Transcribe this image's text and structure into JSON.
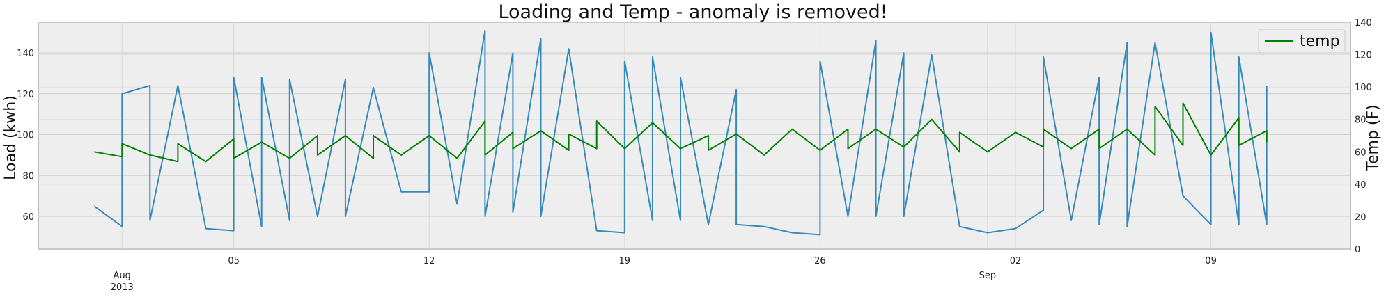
{
  "chart_data": {
    "type": "line",
    "title": "Loading and Temp - anomaly is removed!",
    "ylabel": "Load (kwh)",
    "y2label": "Temp (F)",
    "xlim": [
      "2013-07-29",
      "2013-09-14"
    ],
    "ylim": [
      44,
      155
    ],
    "y2lim": [
      0,
      140
    ],
    "yticks": [
      60,
      80,
      100,
      120,
      140
    ],
    "y2ticks": [
      0,
      20,
      40,
      60,
      80,
      100,
      120,
      140
    ],
    "xticks": [
      {
        "date": "2013-08-01",
        "label": "Aug",
        "sublabel": "2013"
      },
      {
        "date": "2013-08-05",
        "label": "05",
        "sublabel": ""
      },
      {
        "date": "2013-08-12",
        "label": "12",
        "sublabel": ""
      },
      {
        "date": "2013-08-19",
        "label": "19",
        "sublabel": ""
      },
      {
        "date": "2013-08-26",
        "label": "26",
        "sublabel": ""
      },
      {
        "date": "2013-09-01",
        "label": "Sep",
        "sublabel": ""
      },
      {
        "date": "2013-09-02",
        "label": "02",
        "sublabel": ""
      },
      {
        "date": "2013-09-09",
        "label": "09",
        "sublabel": ""
      }
    ],
    "grid": true,
    "legend": {
      "position": "top-right",
      "entries": [
        "temp"
      ]
    },
    "series": [
      {
        "axis": "left",
        "color": "#348abd",
        "points": [
          [
            "2013-07-31",
            65
          ],
          [
            "2013-08-01",
            55
          ],
          [
            "2013-08-01",
            120
          ],
          [
            "2013-08-02",
            124
          ],
          [
            "2013-08-02",
            58
          ],
          [
            "2013-08-03",
            124
          ],
          [
            "2013-08-04",
            54
          ],
          [
            "2013-08-05",
            53
          ],
          [
            "2013-08-05",
            128
          ],
          [
            "2013-08-06",
            55
          ],
          [
            "2013-08-06",
            128
          ],
          [
            "2013-08-07",
            58
          ],
          [
            "2013-08-07",
            127
          ],
          [
            "2013-08-08",
            60
          ],
          [
            "2013-08-09",
            127
          ],
          [
            "2013-08-09",
            60
          ],
          [
            "2013-08-10",
            123
          ],
          [
            "2013-08-11",
            72
          ],
          [
            "2013-08-12",
            72
          ],
          [
            "2013-08-12",
            140
          ],
          [
            "2013-08-13",
            66
          ],
          [
            "2013-08-14",
            151
          ],
          [
            "2013-08-14",
            60
          ],
          [
            "2013-08-15",
            140
          ],
          [
            "2013-08-15",
            62
          ],
          [
            "2013-08-16",
            147
          ],
          [
            "2013-08-16",
            60
          ],
          [
            "2013-08-17",
            142
          ],
          [
            "2013-08-18",
            53
          ],
          [
            "2013-08-19",
            52
          ],
          [
            "2013-08-19",
            136
          ],
          [
            "2013-08-20",
            58
          ],
          [
            "2013-08-20",
            138
          ],
          [
            "2013-08-21",
            58
          ],
          [
            "2013-08-21",
            128
          ],
          [
            "2013-08-22",
            56
          ],
          [
            "2013-08-23",
            122
          ],
          [
            "2013-08-23",
            56
          ],
          [
            "2013-08-24",
            55
          ],
          [
            "2013-08-25",
            52
          ],
          [
            "2013-08-26",
            51
          ],
          [
            "2013-08-26",
            136
          ],
          [
            "2013-08-27",
            60
          ],
          [
            "2013-08-28",
            146
          ],
          [
            "2013-08-28",
            60
          ],
          [
            "2013-08-29",
            140
          ],
          [
            "2013-08-29",
            60
          ],
          [
            "2013-08-30",
            139
          ],
          [
            "2013-08-31",
            55
          ],
          [
            "2013-09-01",
            52
          ],
          [
            "2013-09-02",
            54
          ],
          [
            "2013-09-03",
            63
          ],
          [
            "2013-09-03",
            138
          ],
          [
            "2013-09-04",
            58
          ],
          [
            "2013-09-05",
            128
          ],
          [
            "2013-09-05",
            56
          ],
          [
            "2013-09-06",
            145
          ],
          [
            "2013-09-06",
            55
          ],
          [
            "2013-09-07",
            145
          ],
          [
            "2013-09-08",
            70
          ],
          [
            "2013-09-09",
            56
          ],
          [
            "2013-09-09",
            150
          ],
          [
            "2013-09-10",
            56
          ],
          [
            "2013-09-10",
            138
          ],
          [
            "2013-09-11",
            56
          ],
          [
            "2013-09-11",
            124
          ]
        ]
      },
      {
        "name": "temp",
        "axis": "right",
        "color": "#008000",
        "points": [
          [
            "2013-07-31",
            60
          ],
          [
            "2013-08-01",
            57
          ],
          [
            "2013-08-01",
            65
          ],
          [
            "2013-08-02",
            58
          ],
          [
            "2013-08-03",
            54
          ],
          [
            "2013-08-03",
            65
          ],
          [
            "2013-08-04",
            54
          ],
          [
            "2013-08-05",
            68
          ],
          [
            "2013-08-05",
            56
          ],
          [
            "2013-08-06",
            66
          ],
          [
            "2013-08-07",
            56
          ],
          [
            "2013-08-08",
            70
          ],
          [
            "2013-08-08",
            58
          ],
          [
            "2013-08-09",
            70
          ],
          [
            "2013-08-10",
            56
          ],
          [
            "2013-08-10",
            70
          ],
          [
            "2013-08-11",
            58
          ],
          [
            "2013-08-12",
            70
          ],
          [
            "2013-08-13",
            56
          ],
          [
            "2013-08-14",
            79
          ],
          [
            "2013-08-14",
            58
          ],
          [
            "2013-08-15",
            72
          ],
          [
            "2013-08-15",
            62
          ],
          [
            "2013-08-16",
            73
          ],
          [
            "2013-08-17",
            61
          ],
          [
            "2013-08-17",
            71
          ],
          [
            "2013-08-18",
            62
          ],
          [
            "2013-08-18",
            79
          ],
          [
            "2013-08-19",
            62
          ],
          [
            "2013-08-20",
            78
          ],
          [
            "2013-08-21",
            62
          ],
          [
            "2013-08-22",
            70
          ],
          [
            "2013-08-22",
            61
          ],
          [
            "2013-08-23",
            71
          ],
          [
            "2013-08-24",
            58
          ],
          [
            "2013-08-25",
            74
          ],
          [
            "2013-08-26",
            61
          ],
          [
            "2013-08-27",
            74
          ],
          [
            "2013-08-27",
            62
          ],
          [
            "2013-08-28",
            74
          ],
          [
            "2013-08-29",
            63
          ],
          [
            "2013-08-30",
            80
          ],
          [
            "2013-08-31",
            60
          ],
          [
            "2013-08-31",
            72
          ],
          [
            "2013-09-01",
            60
          ],
          [
            "2013-09-02",
            72
          ],
          [
            "2013-09-03",
            63
          ],
          [
            "2013-09-03",
            74
          ],
          [
            "2013-09-04",
            62
          ],
          [
            "2013-09-05",
            74
          ],
          [
            "2013-09-05",
            62
          ],
          [
            "2013-09-06",
            74
          ],
          [
            "2013-09-07",
            58
          ],
          [
            "2013-09-07",
            88
          ],
          [
            "2013-09-08",
            64
          ],
          [
            "2013-09-08",
            90
          ],
          [
            "2013-09-09",
            58
          ],
          [
            "2013-09-10",
            81
          ],
          [
            "2013-09-10",
            64
          ],
          [
            "2013-09-11",
            73
          ],
          [
            "2013-09-11",
            66
          ]
        ]
      }
    ]
  }
}
